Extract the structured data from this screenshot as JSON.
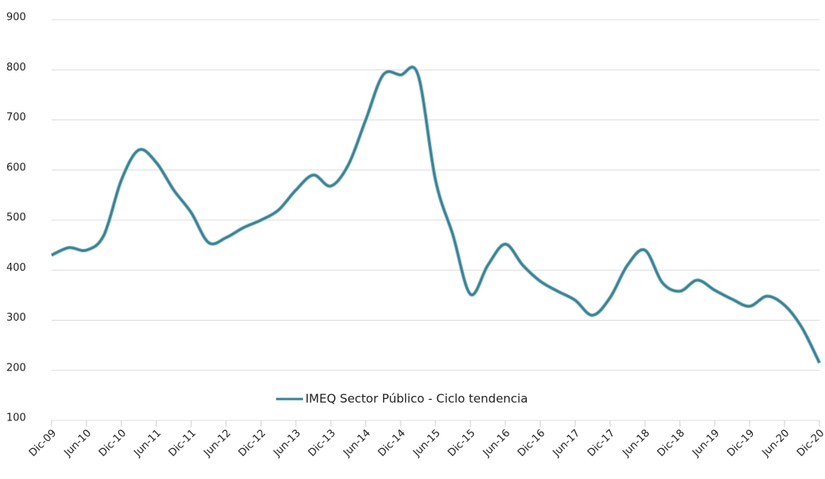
{
  "chart_data": {
    "type": "line",
    "categories": [
      "Dic-09",
      null,
      "Jun-10",
      null,
      "Dic-10",
      null,
      "Jun-11",
      null,
      "Dic-11",
      null,
      "Jun-12",
      null,
      "Dic-12",
      null,
      "Jun-13",
      null,
      "Dic-13",
      null,
      "Jun-14",
      null,
      "Dic-14",
      null,
      "Jun-15",
      null,
      "Dic-15",
      null,
      "Jun-16",
      null,
      "Dic-16",
      null,
      "Jun-17",
      null,
      "Dic-17",
      null,
      "Jun-18",
      null,
      "Dic-18",
      null,
      "Jun-19",
      null,
      "Dic-19",
      null,
      "Jun-20",
      null,
      "Dic-20"
    ],
    "series": [
      {
        "name": "IMEQ Sector Público - Ciclo tendencia",
        "color": "#3b8294",
        "values": [
          430,
          445,
          440,
          470,
          580,
          640,
          615,
          560,
          515,
          455,
          465,
          485,
          500,
          520,
          560,
          590,
          568,
          610,
          700,
          790,
          790,
          790,
          580,
          470,
          352,
          410,
          452,
          410,
          378,
          358,
          340,
          310,
          345,
          410,
          440,
          375,
          358,
          380,
          360,
          342,
          328,
          348,
          330,
          285,
          215
        ]
      }
    ],
    "ylim": [
      100,
      900
    ],
    "yticks": [
      100,
      200,
      300,
      400,
      500,
      600,
      700,
      800,
      900
    ],
    "grid": true,
    "legend": "bottom"
  }
}
